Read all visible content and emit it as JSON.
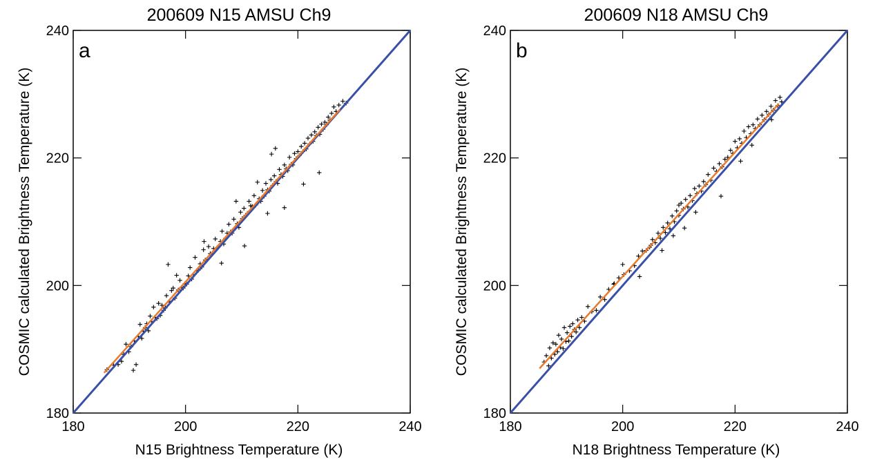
{
  "chart_data": [
    {
      "id": "a",
      "type": "scatter",
      "title": "200609 N15 AMSU Ch9",
      "panel_label": "a",
      "xlabel": "N15 Brightness Temperature (K)",
      "ylabel": "COSMIC calculated Brightness Temperature (K)",
      "xlim": [
        180,
        240
      ],
      "ylim": [
        180,
        240
      ],
      "xticks": [
        180,
        200,
        220,
        240
      ],
      "yticks": [
        180,
        200,
        220,
        240
      ],
      "marker": "+",
      "colors": {
        "points": "#000000",
        "fit": "#e87a2d",
        "one_to_one": "#3a4fa6"
      },
      "reference_line": {
        "x": [
          180,
          240
        ],
        "y": [
          180,
          240
        ]
      },
      "fit_line": {
        "x": [
          185.5,
          227.5
        ],
        "y": [
          186.3,
          227.6
        ]
      },
      "series": [
        {
          "values": [
            [
              186.0,
              186.8
            ],
            [
              187.2,
              187.5
            ],
            [
              188.0,
              187.6
            ],
            [
              188.6,
              188.1
            ],
            [
              189.0,
              189.2
            ],
            [
              189.4,
              190.8
            ],
            [
              189.9,
              189.6
            ],
            [
              190.3,
              190.4
            ],
            [
              190.7,
              186.7
            ],
            [
              190.9,
              191.3
            ],
            [
              191.2,
              187.6
            ],
            [
              191.6,
              192.0
            ],
            [
              191.9,
              193.9
            ],
            [
              192.2,
              191.7
            ],
            [
              192.5,
              192.8
            ],
            [
              192.8,
              193.4
            ],
            [
              193.1,
              194.0
            ],
            [
              193.4,
              192.9
            ],
            [
              193.7,
              195.2
            ],
            [
              194.0,
              194.3
            ],
            [
              194.3,
              196.6
            ],
            [
              194.6,
              195.0
            ],
            [
              194.9,
              194.8
            ],
            [
              195.2,
              197.2
            ],
            [
              195.5,
              195.3
            ],
            [
              195.8,
              196.9
            ],
            [
              196.1,
              196.1
            ],
            [
              196.4,
              196.5
            ],
            [
              196.6,
              198.4
            ],
            [
              196.9,
              203.3
            ],
            [
              197.2,
              197.4
            ],
            [
              197.5,
              199.2
            ],
            [
              197.8,
              199.6
            ],
            [
              198.1,
              198.0
            ],
            [
              198.4,
              201.6
            ],
            [
              198.7,
              199.3
            ],
            [
              199.0,
              200.8
            ],
            [
              199.3,
              199.7
            ],
            [
              199.6,
              199.6
            ],
            [
              199.9,
              200.3
            ],
            [
              200.2,
              200.2
            ],
            [
              200.5,
              201.5
            ],
            [
              200.8,
              202.8
            ],
            [
              201.1,
              201.0
            ],
            [
              201.4,
              201.7
            ],
            [
              201.7,
              204.4
            ],
            [
              202.0,
              202.3
            ],
            [
              202.3,
              202.4
            ],
            [
              202.6,
              203.4
            ],
            [
              202.9,
              202.9
            ],
            [
              203.2,
              205.6
            ],
            [
              203.5,
              204.0
            ],
            [
              203.8,
              204.1
            ],
            [
              204.1,
              206.1
            ],
            [
              204.4,
              205.0
            ],
            [
              204.7,
              204.9
            ],
            [
              205.0,
              205.8
            ],
            [
              205.3,
              207.3
            ],
            [
              205.6,
              205.9
            ],
            [
              205.9,
              206.1
            ],
            [
              206.2,
              206.9
            ],
            [
              206.5,
              208.5
            ],
            [
              206.8,
              206.5
            ],
            [
              207.1,
              207.4
            ],
            [
              207.4,
              208.2
            ],
            [
              207.7,
              209.6
            ],
            [
              208.0,
              208.4
            ],
            [
              208.3,
              208.2
            ],
            [
              208.6,
              210.4
            ],
            [
              208.9,
              209.0
            ],
            [
              209.2,
              209.7
            ],
            [
              209.5,
              209.1
            ],
            [
              209.8,
              211.5
            ],
            [
              210.1,
              210.5
            ],
            [
              210.4,
              212.1
            ],
            [
              210.7,
              211.0
            ],
            [
              211.0,
              211.3
            ],
            [
              211.3,
              213.2
            ],
            [
              211.6,
              212.5
            ],
            [
              211.9,
              212.4
            ],
            [
              212.2,
              214.1
            ],
            [
              212.5,
              212.6
            ],
            [
              212.8,
              216.2
            ],
            [
              213.1,
              213.6
            ],
            [
              213.4,
              213.2
            ],
            [
              213.7,
              214.9
            ],
            [
              214.0,
              214.0
            ],
            [
              214.3,
              216.0
            ],
            [
              214.6,
              215.0
            ],
            [
              214.9,
              214.8
            ],
            [
              215.2,
              216.6
            ],
            [
              215.5,
              215.7
            ],
            [
              215.8,
              217.2
            ],
            [
              216.1,
              216.3
            ],
            [
              216.4,
              216.0
            ],
            [
              216.7,
              218.2
            ],
            [
              217.0,
              217.4
            ],
            [
              217.3,
              217.1
            ],
            [
              217.6,
              218.9
            ],
            [
              217.9,
              218.3
            ],
            [
              218.2,
              218.0
            ],
            [
              218.5,
              220.1
            ],
            [
              218.8,
              219.0
            ],
            [
              219.1,
              218.9
            ],
            [
              219.4,
              220.7
            ],
            [
              219.7,
              219.9
            ],
            [
              220.0,
              221.0
            ],
            [
              220.3,
              220.4
            ],
            [
              220.6,
              221.8
            ],
            [
              220.9,
              221.0
            ],
            [
              221.2,
              222.3
            ],
            [
              221.5,
              221.4
            ],
            [
              221.8,
              223.1
            ],
            [
              222.1,
              222.2
            ],
            [
              222.4,
              223.6
            ],
            [
              222.7,
              222.6
            ],
            [
              223.0,
              224.1
            ],
            [
              223.3,
              223.5
            ],
            [
              223.6,
              224.8
            ],
            [
              223.9,
              223.7
            ],
            [
              224.2,
              225.3
            ],
            [
              224.5,
              224.5
            ],
            [
              224.8,
              225.6
            ],
            [
              225.1,
              225.2
            ],
            [
              225.4,
              226.4
            ],
            [
              225.7,
              225.9
            ],
            [
              226.0,
              227.0
            ],
            [
              226.4,
              228.0
            ],
            [
              226.8,
              227.3
            ],
            [
              227.3,
              228.3
            ],
            [
              228.0,
              228.9
            ],
            [
              228.6,
              228.6
            ],
            [
              216.0,
              221.5
            ],
            [
              215.3,
              220.6
            ],
            [
              217.6,
              212.2
            ],
            [
              214.6,
              211.3
            ],
            [
              221.0,
              215.9
            ],
            [
              223.8,
              217.7
            ],
            [
              209.0,
              213.2
            ],
            [
              206.4,
              203.5
            ],
            [
              203.3,
              206.9
            ],
            [
              210.5,
              206.2
            ]
          ]
        }
      ]
    },
    {
      "id": "b",
      "type": "scatter",
      "title": "200609 N18 AMSU Ch9",
      "panel_label": "b",
      "xlabel": "N18 Brightness Temperature (K)",
      "ylabel": "COSMIC calculated Brightness Temperature (K)",
      "xlim": [
        180,
        240
      ],
      "ylim": [
        180,
        240
      ],
      "xticks": [
        180,
        200,
        220,
        240
      ],
      "yticks": [
        180,
        200,
        220,
        240
      ],
      "marker": "+",
      "colors": {
        "points": "#000000",
        "fit": "#e87a2d",
        "one_to_one": "#3a4fa6"
      },
      "reference_line": {
        "x": [
          180,
          240
        ],
        "y": [
          180,
          240
        ]
      },
      "fit_line": {
        "x": [
          185.2,
          227.8
        ],
        "y": [
          187.0,
          228.5
        ]
      },
      "series": [
        {
          "values": [
            [
              186.0,
              188.0
            ],
            [
              186.4,
              189.0
            ],
            [
              186.8,
              187.4
            ],
            [
              187.0,
              190.2
            ],
            [
              187.3,
              188.6
            ],
            [
              187.6,
              191.0
            ],
            [
              187.9,
              189.2
            ],
            [
              188.1,
              190.8
            ],
            [
              188.4,
              189.6
            ],
            [
              188.6,
              192.2
            ],
            [
              188.9,
              190.3
            ],
            [
              189.1,
              191.6
            ],
            [
              189.4,
              190.1
            ],
            [
              189.6,
              193.4
            ],
            [
              189.9,
              191.2
            ],
            [
              190.1,
              192.6
            ],
            [
              190.4,
              191.3
            ],
            [
              190.6,
              193.6
            ],
            [
              190.9,
              192.0
            ],
            [
              191.1,
              194.0
            ],
            [
              191.4,
              193.1
            ],
            [
              191.7,
              192.7
            ],
            [
              192.0,
              194.6
            ],
            [
              192.3,
              193.4
            ],
            [
              192.7,
              195.0
            ],
            [
              193.2,
              194.4
            ],
            [
              193.8,
              196.7
            ],
            [
              194.5,
              195.9
            ],
            [
              195.3,
              196.1
            ],
            [
              196.0,
              198.2
            ],
            [
              196.8,
              197.8
            ],
            [
              197.5,
              199.4
            ],
            [
              198.4,
              200.2
            ],
            [
              199.3,
              201.2
            ],
            [
              200.2,
              201.7
            ],
            [
              201.2,
              202.3
            ],
            [
              202.1,
              203.1
            ],
            [
              202.8,
              204.6
            ],
            [
              203.5,
              205.4
            ],
            [
              204.2,
              205.5
            ],
            [
              204.8,
              206.0
            ],
            [
              205.3,
              207.2
            ],
            [
              205.8,
              206.7
            ],
            [
              206.3,
              208.2
            ],
            [
              206.7,
              207.4
            ],
            [
              207.2,
              209.1
            ],
            [
              207.6,
              208.3
            ],
            [
              208.0,
              209.8
            ],
            [
              208.4,
              208.9
            ],
            [
              208.8,
              210.9
            ],
            [
              209.2,
              210.0
            ],
            [
              209.6,
              211.7
            ],
            [
              210.0,
              211.0
            ],
            [
              210.4,
              212.9
            ],
            [
              210.8,
              212.0
            ],
            [
              211.2,
              213.5
            ],
            [
              211.6,
              212.3
            ],
            [
              212.0,
              214.1
            ],
            [
              212.4,
              213.3
            ],
            [
              212.8,
              215.2
            ],
            [
              213.2,
              214.4
            ],
            [
              213.6,
              215.6
            ],
            [
              214.0,
              214.8
            ],
            [
              214.4,
              216.3
            ],
            [
              214.8,
              215.8
            ],
            [
              215.2,
              217.4
            ],
            [
              215.7,
              216.5
            ],
            [
              216.2,
              218.4
            ],
            [
              216.7,
              217.9
            ],
            [
              217.2,
              219.1
            ],
            [
              217.7,
              218.6
            ],
            [
              218.2,
              219.8
            ],
            [
              218.7,
              220.1
            ],
            [
              219.2,
              221.2
            ],
            [
              219.6,
              220.7
            ],
            [
              220.0,
              222.6
            ],
            [
              220.4,
              221.6
            ],
            [
              220.8,
              223.0
            ],
            [
              221.2,
              222.3
            ],
            [
              221.6,
              224.2
            ],
            [
              222.0,
              223.2
            ],
            [
              222.4,
              224.9
            ],
            [
              222.8,
              223.8
            ],
            [
              223.2,
              225.2
            ],
            [
              223.6,
              224.6
            ],
            [
              224.0,
              226.1
            ],
            [
              224.4,
              225.2
            ],
            [
              224.8,
              226.7
            ],
            [
              225.2,
              226.0
            ],
            [
              225.6,
              227.3
            ],
            [
              226.0,
              226.8
            ],
            [
              226.4,
              228.1
            ],
            [
              226.8,
              227.5
            ],
            [
              227.2,
              229.0
            ],
            [
              227.6,
              228.2
            ],
            [
              228.0,
              229.5
            ],
            [
              228.3,
              228.8
            ],
            [
              226.5,
              226.0
            ],
            [
              223.0,
              222.0
            ],
            [
              221.0,
              219.5
            ],
            [
              217.5,
              214.0
            ],
            [
              213.0,
              211.5
            ],
            [
              209.0,
              207.8
            ],
            [
              207.0,
              205.5
            ],
            [
              211.0,
              209.0
            ],
            [
              200.0,
              203.3
            ],
            [
              203.0,
              201.4
            ],
            [
              198.5,
              200.3
            ],
            [
              205.0,
              206.3
            ],
            [
              210.0,
              212.6
            ]
          ]
        }
      ]
    }
  ]
}
